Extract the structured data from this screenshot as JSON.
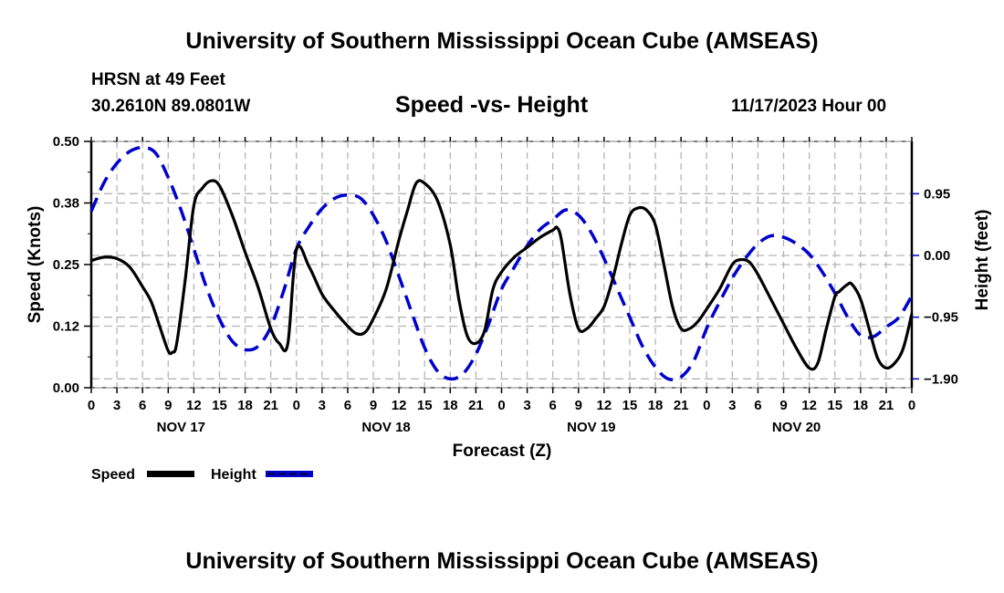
{
  "header": {
    "title_top": "University of Southern Mississippi Ocean Cube (AMSEAS)",
    "station": "HRSN at 49 Feet",
    "coords": "30.2610N  89.0801W",
    "plot_title": "Speed -vs- Height",
    "datetime": "11/17/2023 Hour 00"
  },
  "footer": {
    "title_bottom": "University of Southern Mississippi Ocean Cube (AMSEAS)"
  },
  "colors": {
    "speed": "#000000",
    "height": "#0000cc",
    "grid": "#b4b4b4"
  },
  "chart_data": {
    "type": "line",
    "title": "Speed -vs- Height",
    "xlabel": "Forecast (Z)",
    "ylabel": "Speed (Knots)",
    "y2label": "Height (feet)",
    "xlim": [
      0,
      96
    ],
    "ylim": [
      0,
      0.5
    ],
    "y2lim": [
      -2.05,
      1.75
    ],
    "grid": true,
    "legend_position": "bottom-left",
    "x_tick_labels": [
      "0",
      "3",
      "6",
      "9",
      "12",
      "15",
      "18",
      "21",
      "0",
      "3",
      "6",
      "9",
      "12",
      "15",
      "18",
      "21",
      "0",
      "3",
      "6",
      "9",
      "12",
      "15",
      "18",
      "21",
      "0",
      "3",
      "6",
      "9",
      "12",
      "15",
      "18",
      "21",
      "0"
    ],
    "day_labels": [
      {
        "label": "NOV 17",
        "hour": 10.5
      },
      {
        "label": "NOV 18",
        "hour": 34.5
      },
      {
        "label": "NOV 19",
        "hour": 58.5
      },
      {
        "label": "NOV 20",
        "hour": 82.5
      }
    ],
    "y_ticks": [
      {
        "value": 0.0,
        "label": "0.00"
      },
      {
        "value": 0.125,
        "label": "0.12"
      },
      {
        "value": 0.25,
        "label": "0.25"
      },
      {
        "value": 0.375,
        "label": "0.38"
      },
      {
        "value": 0.5,
        "label": "0.50"
      }
    ],
    "y2_ticks": [
      {
        "value": 0.95,
        "label": "0.95"
      },
      {
        "value": 0.0,
        "label": "0.00"
      },
      {
        "value": -0.95,
        "label": "−0.95"
      },
      {
        "value": -1.9,
        "label": "−1.90"
      }
    ],
    "series": [
      {
        "name": "Speed",
        "axis": "left",
        "style": "solid",
        "x": [
          0,
          1.5,
          3,
          4.5,
          6,
          7,
          8,
          9,
          9.5,
          10,
          11,
          12,
          13,
          14,
          15,
          16.5,
          18,
          19.5,
          21,
          22,
          23,
          24,
          25.5,
          27,
          28.5,
          30,
          31,
          32,
          33,
          34.5,
          36,
          37,
          38,
          39,
          40.5,
          42,
          43,
          44,
          45,
          46,
          47,
          48,
          49.5,
          51,
          52.5,
          54,
          54.5,
          55,
          56,
          57,
          58,
          59,
          60,
          61,
          62,
          63,
          64,
          65,
          66,
          67,
          68,
          69,
          70,
          71,
          72,
          73.5,
          75,
          76,
          77,
          78,
          79.5,
          81,
          82.5,
          84,
          85,
          86,
          87,
          87.5,
          88.5,
          89,
          90,
          91,
          92,
          93,
          94,
          95,
          96
        ],
        "y": [
          0.258,
          0.265,
          0.262,
          0.245,
          0.205,
          0.175,
          0.125,
          0.075,
          0.072,
          0.09,
          0.22,
          0.37,
          0.405,
          0.42,
          0.41,
          0.35,
          0.275,
          0.205,
          0.12,
          0.09,
          0.09,
          0.28,
          0.245,
          0.19,
          0.155,
          0.125,
          0.11,
          0.112,
          0.14,
          0.2,
          0.3,
          0.36,
          0.415,
          0.415,
          0.38,
          0.29,
          0.18,
          0.105,
          0.09,
          0.115,
          0.2,
          0.235,
          0.265,
          0.285,
          0.305,
          0.32,
          0.325,
          0.3,
          0.19,
          0.12,
          0.12,
          0.14,
          0.165,
          0.22,
          0.29,
          0.35,
          0.365,
          0.36,
          0.33,
          0.25,
          0.165,
          0.12,
          0.12,
          0.135,
          0.16,
          0.2,
          0.25,
          0.26,
          0.255,
          0.23,
          0.18,
          0.13,
          0.08,
          0.04,
          0.05,
          0.12,
          0.185,
          0.195,
          0.21,
          0.21,
          0.18,
          0.12,
          0.06,
          0.04,
          0.05,
          0.08,
          0.15
        ]
      },
      {
        "name": "Height",
        "axis": "right",
        "style": "dashed",
        "x": [
          0,
          1.5,
          3,
          4.5,
          6,
          7.5,
          9,
          10.5,
          12,
          13.5,
          15,
          16.5,
          18,
          19.5,
          21,
          22.5,
          24,
          25.5,
          27,
          28.5,
          30,
          31.5,
          33,
          34.5,
          36,
          37.5,
          39,
          40.5,
          42,
          43.5,
          45,
          46.5,
          48,
          49.5,
          51,
          52.5,
          54,
          55.5,
          57,
          58.5,
          60,
          61.5,
          63,
          64.5,
          66,
          67.5,
          69,
          70.5,
          72,
          73.5,
          75,
          76.5,
          78,
          79.5,
          81,
          82.5,
          84,
          85.5,
          87,
          88.5,
          90,
          91.5,
          93,
          94.5,
          96
        ],
        "y": [
          0.68,
          1.12,
          1.42,
          1.6,
          1.66,
          1.58,
          1.2,
          0.7,
          0.1,
          -0.5,
          -0.98,
          -1.32,
          -1.45,
          -1.4,
          -1.1,
          -0.55,
          0.1,
          0.45,
          0.72,
          0.88,
          0.93,
          0.88,
          0.62,
          0.22,
          -0.32,
          -0.88,
          -1.42,
          -1.78,
          -1.9,
          -1.82,
          -1.52,
          -1.05,
          -0.52,
          -0.18,
          0.15,
          0.4,
          0.55,
          0.7,
          0.62,
          0.35,
          -0.05,
          -0.5,
          -0.95,
          -1.4,
          -1.72,
          -1.9,
          -1.87,
          -1.62,
          -1.12,
          -0.72,
          -0.35,
          -0.05,
          0.18,
          0.3,
          0.28,
          0.18,
          0.02,
          -0.25,
          -0.58,
          -0.95,
          -1.23,
          -1.25,
          -1.1,
          -0.95,
          -0.62
        ]
      }
    ]
  }
}
